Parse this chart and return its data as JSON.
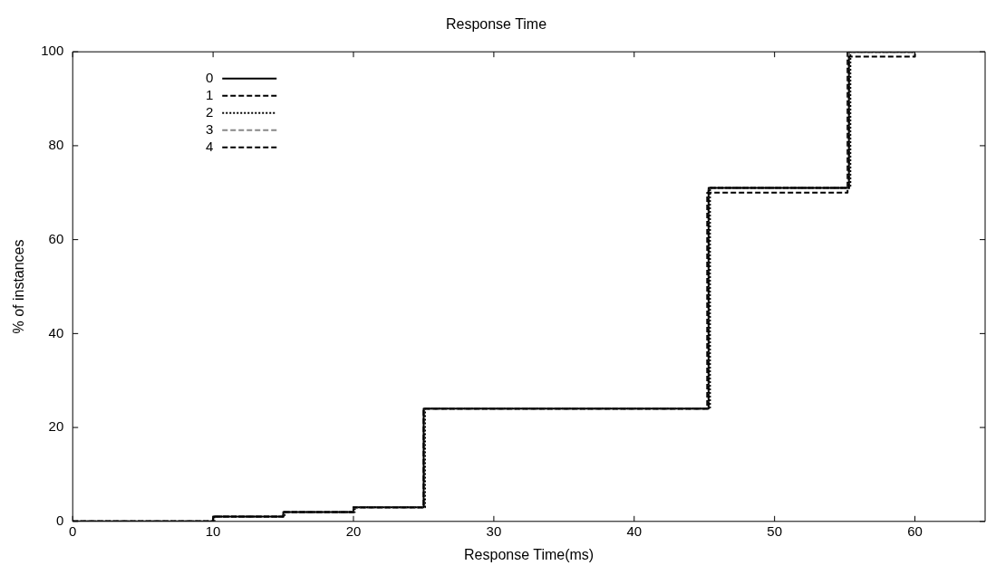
{
  "chart_data": {
    "type": "step",
    "title": "Response Time",
    "xlabel": "Response Time(ms)",
    "ylabel": "% of instances",
    "xlim": [
      0,
      65
    ],
    "xticks": [
      0,
      10,
      20,
      30,
      40,
      50,
      60
    ],
    "ylim": [
      0,
      100
    ],
    "yticks": [
      0,
      20,
      40,
      60,
      80,
      100
    ],
    "grid": false,
    "legend": "top left",
    "marker": "none",
    "series": [
      {
        "name": "0",
        "color": "#000000",
        "line_style": "solid",
        "x": [
          0,
          10,
          15,
          20,
          25,
          45.3,
          55.3,
          60
        ],
        "values": [
          0,
          1,
          2,
          3,
          24,
          71,
          100,
          100
        ]
      },
      {
        "name": "1",
        "color": "#000000",
        "line_style": "dashed",
        "x": [
          0,
          10,
          15,
          20,
          25,
          45.2,
          55.2,
          60
        ],
        "values": [
          0,
          1,
          2,
          3,
          24,
          70,
          100,
          100
        ]
      },
      {
        "name": "2",
        "color": "#000000",
        "line_style": "dotted",
        "x": [
          0,
          10.1,
          15.1,
          20.1,
          25.1,
          45.4,
          55.4,
          60
        ],
        "values": [
          0,
          1,
          2,
          3,
          24,
          71,
          100,
          100
        ]
      },
      {
        "name": "3",
        "color": "#888888",
        "line_style": "dashed",
        "x": [
          0,
          10,
          15,
          20,
          25,
          45.3,
          55.3,
          60
        ],
        "values": [
          0,
          1,
          2,
          3,
          24,
          71,
          100,
          100
        ]
      },
      {
        "name": "4",
        "color": "#000000",
        "line_style": "dashed",
        "x": [
          0,
          10,
          15,
          20,
          25,
          45.3,
          55.3,
          60
        ],
        "values": [
          0,
          1,
          2,
          3,
          24,
          71,
          99,
          100
        ]
      }
    ]
  }
}
